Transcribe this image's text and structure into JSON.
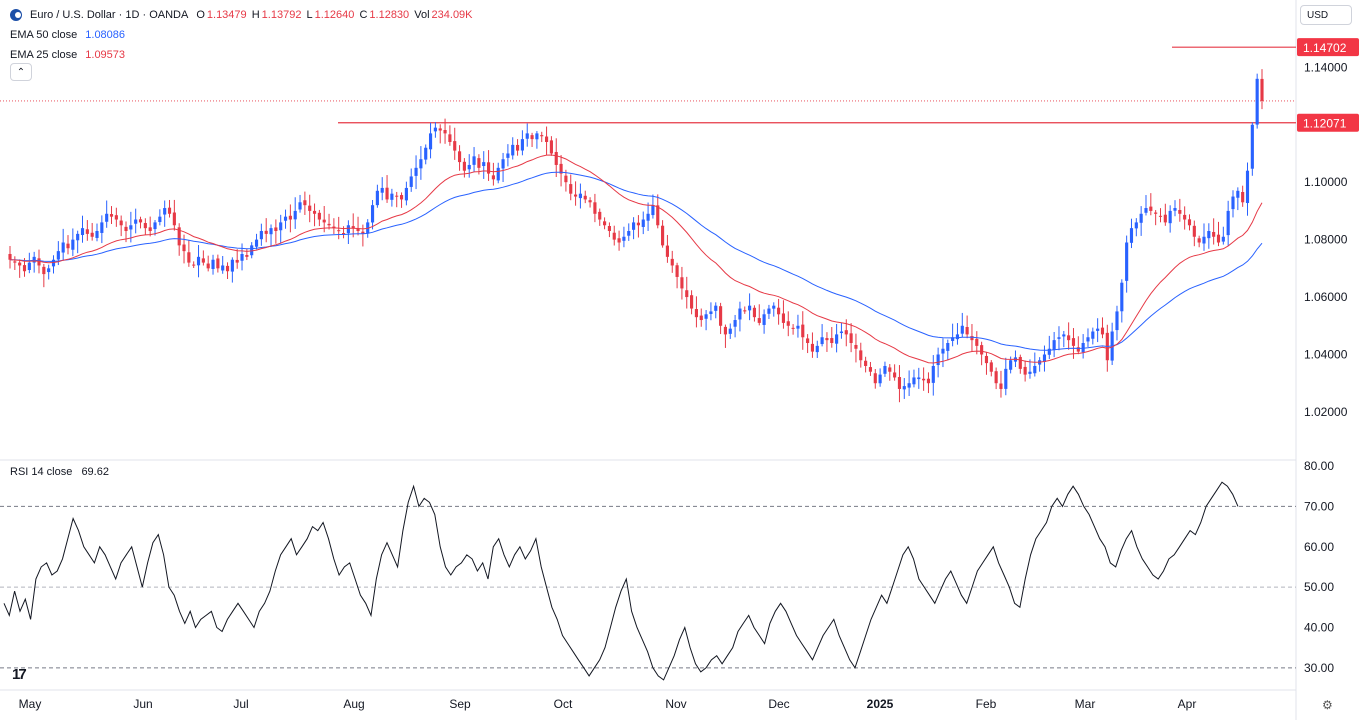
{
  "header": {
    "symbol_title": "Euro / U.S. Dollar · 1D · OANDA",
    "o_label": "O",
    "o_value": "1.13479",
    "h_label": "H",
    "h_value": "1.13792",
    "l_label": "L",
    "l_value": "1.12640",
    "c_label": "C",
    "c_value": "1.12830",
    "vol_label": "Vol",
    "vol_value": "234.09K",
    "collapse_glyph": "⌃",
    "currency": "USD"
  },
  "indicators": {
    "ema50_label": "EMA 50 close",
    "ema50_value": "1.08086",
    "ema25_label": "EMA 25 close",
    "ema25_value": "1.09573",
    "rsi_label": "RSI 14 close",
    "rsi_value": "69.62"
  },
  "colors": {
    "up": "#2962ff",
    "down": "#e63946",
    "ema50": "#2962ff",
    "ema25": "#e63946",
    "rsi": "#131722",
    "level_line": "#e63946",
    "label_bg": "#f23645"
  },
  "price_labels": {
    "high_level": "1.14702",
    "resistance_level": "1.12071"
  },
  "footer": {
    "logo_text": "17",
    "settings_icon": "gear-icon"
  },
  "chart_data": [
    {
      "type": "candlestick",
      "ylim": [
        1.005,
        1.153
      ],
      "yticks": [
        "1.14000",
        "1.12000",
        "1.10000",
        "1.08000",
        "1.06000",
        "1.04000",
        "1.02000"
      ],
      "ytick_values": [
        1.14,
        1.12,
        1.1,
        1.08,
        1.06,
        1.04,
        1.02
      ],
      "xticks": [
        "May",
        "Jun",
        "Jul",
        "Aug",
        "Sep",
        "Oct",
        "Nov",
        "Dec",
        "2025",
        "Feb",
        "Mar",
        "Apr"
      ],
      "horizontal_levels": [
        1.14702,
        1.12071
      ],
      "last_close": 1.1283,
      "series": [
        {
          "name": "EMA 50 close",
          "kind": "line"
        },
        {
          "name": "EMA 25 close",
          "kind": "line"
        }
      ],
      "close": [
        1.073,
        1.072,
        1.071,
        1.069,
        1.072,
        1.074,
        1.071,
        1.068,
        1.07,
        1.073,
        1.076,
        1.079,
        1.077,
        1.08,
        1.082,
        1.084,
        1.082,
        1.081,
        1.083,
        1.086,
        1.089,
        1.088,
        1.087,
        1.085,
        1.083,
        1.085,
        1.087,
        1.086,
        1.084,
        1.083,
        1.086,
        1.088,
        1.091,
        1.089,
        1.085,
        1.078,
        1.076,
        1.072,
        1.071,
        1.074,
        1.072,
        1.07,
        1.073,
        1.07,
        1.071,
        1.069,
        1.073,
        1.072,
        1.075,
        1.074,
        1.078,
        1.08,
        1.083,
        1.082,
        1.084,
        1.083,
        1.086,
        1.088,
        1.087,
        1.09,
        1.093,
        1.092,
        1.09,
        1.089,
        1.087,
        1.086,
        1.085,
        1.084,
        1.083,
        1.082,
        1.085,
        1.084,
        1.083,
        1.082,
        1.086,
        1.092,
        1.097,
        1.098,
        1.094,
        1.096,
        1.095,
        1.094,
        1.098,
        1.102,
        1.105,
        1.108,
        1.112,
        1.117,
        1.119,
        1.118,
        1.117,
        1.114,
        1.111,
        1.107,
        1.104,
        1.106,
        1.109,
        1.105,
        1.107,
        1.103,
        1.101,
        1.105,
        1.108,
        1.11,
        1.113,
        1.111,
        1.115,
        1.117,
        1.115,
        1.117,
        1.116,
        1.114,
        1.11,
        1.106,
        1.103,
        1.1,
        1.096,
        1.095,
        1.096,
        1.094,
        1.093,
        1.089,
        1.087,
        1.085,
        1.083,
        1.08,
        1.079,
        1.081,
        1.083,
        1.086,
        1.085,
        1.087,
        1.089,
        1.092,
        1.085,
        1.078,
        1.074,
        1.071,
        1.067,
        1.063,
        1.06,
        1.056,
        1.053,
        1.052,
        1.054,
        1.055,
        1.057,
        1.05,
        1.047,
        1.049,
        1.052,
        1.056,
        1.055,
        1.057,
        1.053,
        1.051,
        1.054,
        1.056,
        1.057,
        1.054,
        1.051,
        1.05,
        1.049,
        1.05,
        1.046,
        1.044,
        1.041,
        1.043,
        1.046,
        1.045,
        1.044,
        1.047,
        1.048,
        1.047,
        1.044,
        1.042,
        1.038,
        1.036,
        1.034,
        1.03,
        1.033,
        1.036,
        1.034,
        1.032,
        1.028,
        1.029,
        1.03,
        1.032,
        1.032,
        1.031,
        1.03,
        1.036,
        1.04,
        1.042,
        1.044,
        1.046,
        1.047,
        1.05,
        1.047,
        1.045,
        1.043,
        1.04,
        1.037,
        1.034,
        1.03,
        1.028,
        1.035,
        1.038,
        1.039,
        1.035,
        1.033,
        1.034,
        1.036,
        1.038,
        1.04,
        1.042,
        1.045,
        1.046,
        1.047,
        1.045,
        1.043,
        1.041,
        1.044,
        1.046,
        1.048,
        1.049,
        1.047,
        1.038,
        1.048,
        1.055,
        1.065,
        1.079,
        1.084,
        1.086,
        1.089,
        1.091,
        1.09,
        1.089,
        1.088,
        1.086,
        1.09,
        1.091,
        1.089,
        1.087,
        1.085,
        1.081,
        1.079,
        1.081,
        1.083,
        1.081,
        1.079,
        1.081,
        1.09,
        1.095,
        1.097,
        1.093,
        1.104,
        1.12,
        1.136,
        1.1283
      ]
    },
    {
      "type": "line",
      "ylim": [
        25,
        81
      ],
      "yticks": [
        "80.00",
        "70.00",
        "60.00",
        "50.00",
        "40.00",
        "30.00"
      ],
      "ytick_values": [
        80,
        70,
        60,
        50,
        40,
        30
      ],
      "guide_levels": [
        70,
        50,
        30
      ],
      "series": [
        {
          "name": "RSI 14 close",
          "values": [
            46,
            43,
            49,
            44,
            47,
            42,
            52,
            55,
            56,
            53,
            54,
            57,
            62,
            67,
            64,
            60,
            58,
            56,
            60,
            58,
            55,
            52,
            56,
            58,
            60,
            55,
            50,
            56,
            61,
            63,
            58,
            50,
            48,
            44,
            41,
            44,
            40,
            42,
            43,
            44,
            40,
            39,
            42,
            44,
            46,
            44,
            42,
            40,
            44,
            46,
            49,
            54,
            58,
            60,
            62,
            58,
            60,
            62,
            65,
            64,
            66,
            62,
            57,
            53,
            55,
            56,
            52,
            48,
            46,
            43,
            52,
            58,
            61,
            58,
            55,
            64,
            71,
            75,
            70,
            72,
            71,
            68,
            60,
            55,
            53,
            55,
            56,
            58,
            57,
            54,
            56,
            52,
            60,
            62,
            58,
            55,
            58,
            60,
            57,
            59,
            62,
            55,
            50,
            45,
            42,
            38,
            36,
            34,
            32,
            30,
            28,
            30,
            32,
            35,
            40,
            45,
            49,
            52,
            44,
            40,
            37,
            34,
            30,
            28,
            27,
            30,
            33,
            37,
            40,
            35,
            31,
            29,
            30,
            32,
            33,
            31,
            33,
            35,
            39,
            41,
            43,
            40,
            38,
            36,
            41,
            44,
            46,
            44,
            41,
            38,
            36,
            34,
            32,
            35,
            38,
            40,
            42,
            38,
            35,
            32,
            30,
            34,
            38,
            42,
            45,
            48,
            46,
            50,
            54,
            58,
            60,
            57,
            52,
            50,
            48,
            46,
            49,
            52,
            54,
            51,
            48,
            46,
            50,
            54,
            56,
            58,
            60,
            56,
            53,
            50,
            46,
            45,
            52,
            58,
            62,
            64,
            66,
            70,
            72,
            70,
            73,
            75,
            73,
            70,
            68,
            65,
            62,
            60,
            56,
            55,
            59,
            62,
            64,
            60,
            57,
            55,
            53,
            52,
            54,
            57,
            58,
            60,
            62,
            64,
            63,
            66,
            70,
            72,
            74,
            76,
            75,
            73,
            70
          ]
        }
      ]
    }
  ]
}
